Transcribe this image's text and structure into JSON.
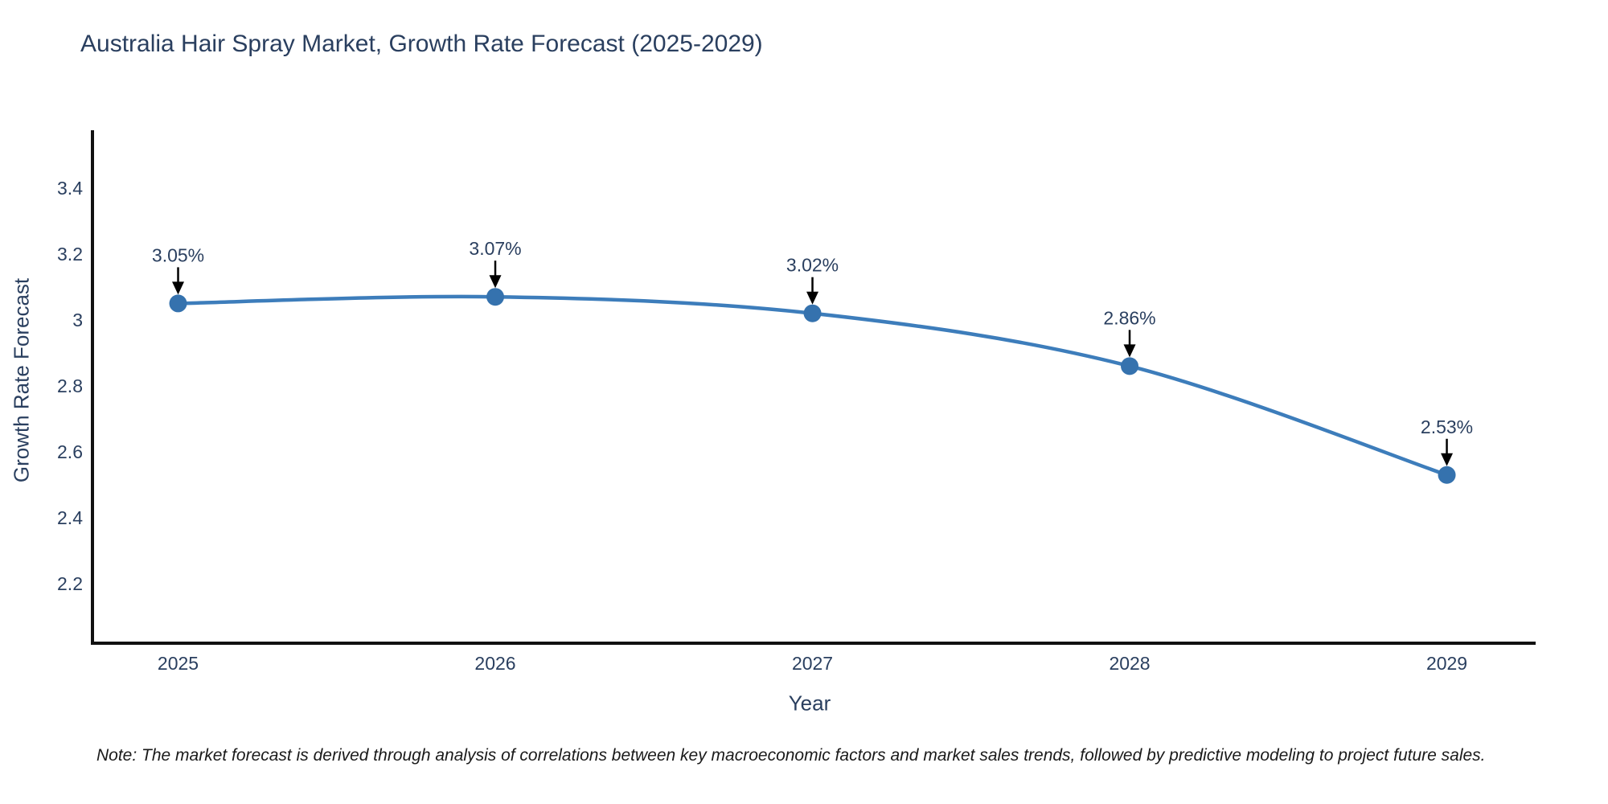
{
  "page": {
    "note": "Note: The market forecast is derived through analysis of correlations between key macroeconomic factors and market sales trends, followed by predictive modeling to project future sales."
  },
  "chart_data": {
    "type": "line",
    "title": "Australia Hair Spray Market, Growth Rate Forecast (2025-2029)",
    "xlabel": "Year",
    "ylabel": "Growth Rate Forecast",
    "categories": [
      2025,
      2026,
      2027,
      2028,
      2029
    ],
    "series": [
      {
        "name": "Growth Rate Forecast",
        "values": [
          3.05,
          3.07,
          3.02,
          2.86,
          2.53
        ]
      }
    ],
    "point_labels": [
      "3.05%",
      "3.07%",
      "3.02%",
      "2.86%",
      "2.53%"
    ],
    "yticks": [
      2.2,
      2.4,
      2.6,
      2.8,
      3,
      3.2,
      3.4
    ],
    "ylim": [
      2.02,
      3.575
    ],
    "xlim": [
      2024.73,
      2029.28
    ],
    "grid": false,
    "legend_position": "none",
    "line_shape": "spline",
    "colors": {
      "line": "#3d7dbb",
      "marker": "#3572ae",
      "axis_line": "#111111",
      "chart_text": "#2a3f5f",
      "annotation_arrow": "#000000",
      "background": "#ffffff"
    }
  }
}
